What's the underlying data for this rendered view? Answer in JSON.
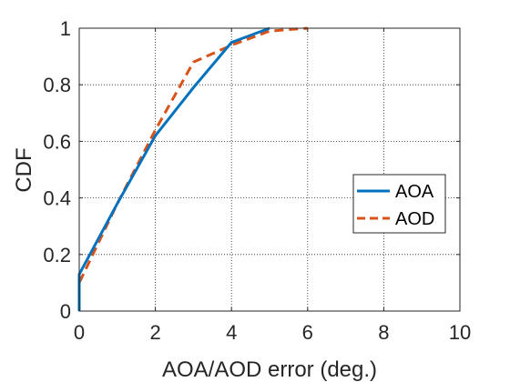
{
  "chart_data": {
    "type": "line",
    "xlabel": "AOA/AOD error (deg.)",
    "ylabel": "CDF",
    "xlim": [
      0,
      10
    ],
    "ylim": [
      0,
      1
    ],
    "x_ticks": [
      0,
      2,
      4,
      6,
      8,
      10
    ],
    "y_ticks": [
      0,
      0.2,
      0.4,
      0.6,
      0.8,
      1
    ],
    "x_tick_labels": [
      "0",
      "2",
      "4",
      "6",
      "8",
      "10"
    ],
    "y_tick_labels": [
      "0",
      "0.2",
      "0.4",
      "0.6",
      "0.8",
      "1"
    ],
    "grid": true,
    "legend_position": "right",
    "series": [
      {
        "name": "AOA",
        "color": "#0072BD",
        "style": "solid",
        "x": [
          0,
          0,
          1,
          2,
          3,
          4,
          5
        ],
        "y": [
          0,
          0.13,
          0.38,
          0.62,
          0.79,
          0.95,
          1.0
        ]
      },
      {
        "name": "AOD",
        "color": "#D95319",
        "style": "dashed",
        "x": [
          0,
          0,
          1,
          2,
          3,
          4,
          5,
          6
        ],
        "y": [
          0,
          0.1,
          0.38,
          0.64,
          0.88,
          0.94,
          0.99,
          1.0
        ]
      }
    ]
  }
}
